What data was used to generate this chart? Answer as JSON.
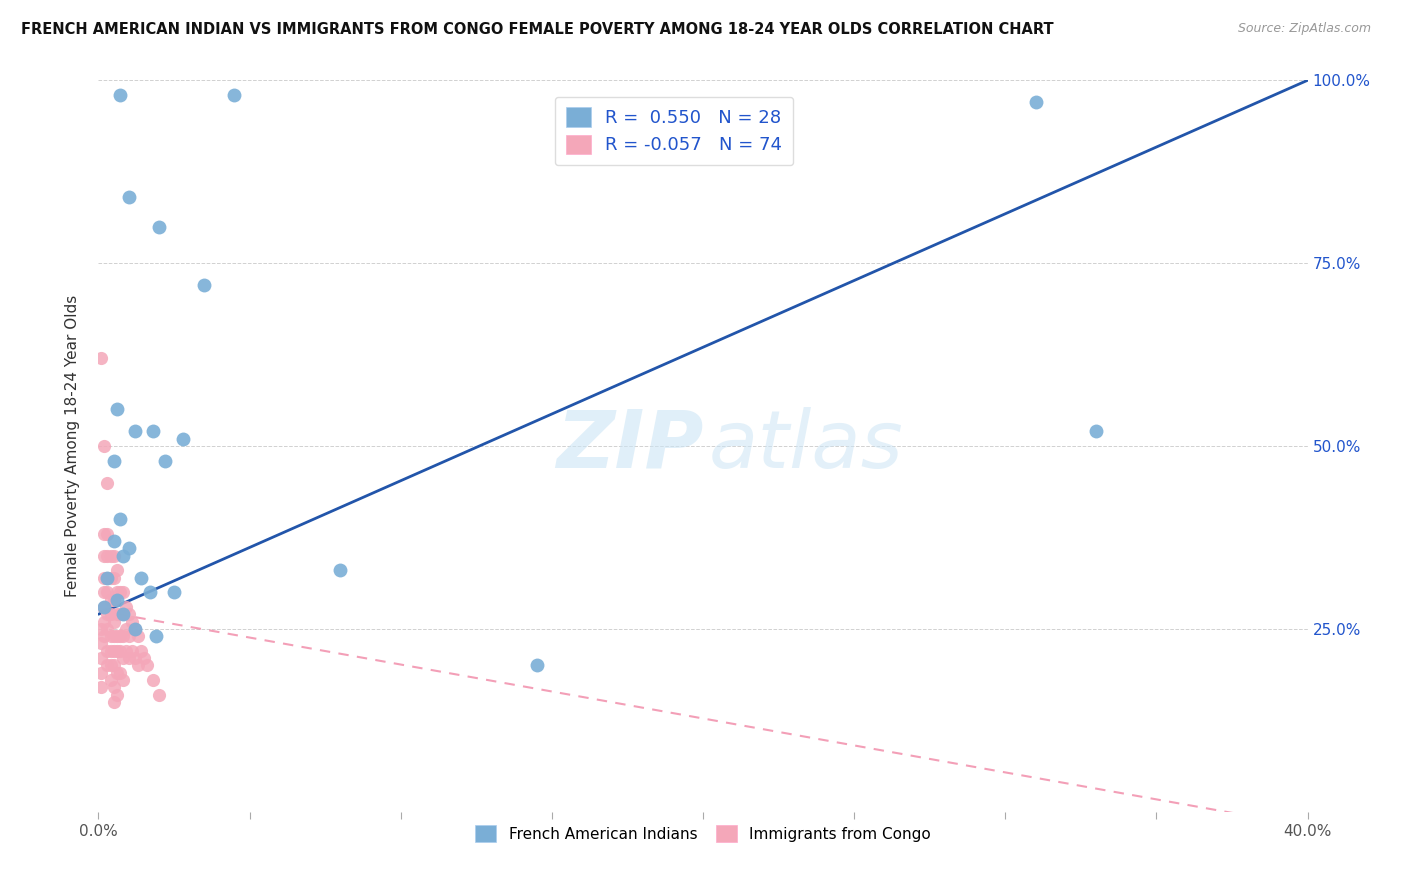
{
  "title": "FRENCH AMERICAN INDIAN VS IMMIGRANTS FROM CONGO FEMALE POVERTY AMONG 18-24 YEAR OLDS CORRELATION CHART",
  "source": "Source: ZipAtlas.com",
  "ylabel": "Female Poverty Among 18-24 Year Olds",
  "xlim": [
    0.0,
    0.4
  ],
  "ylim": [
    0.0,
    1.0
  ],
  "xticks": [
    0.0,
    0.05,
    0.1,
    0.15,
    0.2,
    0.25,
    0.3,
    0.35,
    0.4
  ],
  "yticks": [
    0.0,
    0.25,
    0.5,
    0.75,
    1.0
  ],
  "blue_R": "0.550",
  "blue_N": "28",
  "pink_R": "-0.057",
  "pink_N": "74",
  "legend_label_blue": "French American Indians",
  "legend_label_pink": "Immigrants from Congo",
  "blue_color": "#7aaed6",
  "pink_color": "#f4a7b9",
  "blue_trend_color": "#2255aa",
  "pink_trend_color": "#ee7799",
  "blue_trend_x0": 0.0,
  "blue_trend_y0": 0.27,
  "blue_trend_x1": 0.4,
  "blue_trend_y1": 1.0,
  "pink_trend_x0": 0.0,
  "pink_trend_y0": 0.275,
  "pink_trend_x1": 0.4,
  "pink_trend_y1": -0.02,
  "blue_scatter_x": [
    0.01,
    0.02,
    0.045,
    0.035,
    0.007,
    0.006,
    0.012,
    0.018,
    0.022,
    0.028,
    0.005,
    0.008,
    0.003,
    0.006,
    0.002,
    0.008,
    0.012,
    0.019,
    0.025,
    0.005,
    0.007,
    0.01,
    0.014,
    0.017,
    0.08,
    0.145,
    0.33,
    0.31
  ],
  "blue_scatter_y": [
    0.84,
    0.8,
    0.98,
    0.72,
    0.98,
    0.55,
    0.52,
    0.52,
    0.48,
    0.51,
    0.37,
    0.35,
    0.32,
    0.29,
    0.28,
    0.27,
    0.25,
    0.24,
    0.3,
    0.48,
    0.4,
    0.36,
    0.32,
    0.3,
    0.33,
    0.2,
    0.52,
    0.97
  ],
  "pink_scatter_x": [
    0.001,
    0.001,
    0.001,
    0.001,
    0.001,
    0.002,
    0.002,
    0.002,
    0.002,
    0.002,
    0.002,
    0.002,
    0.003,
    0.003,
    0.003,
    0.003,
    0.003,
    0.003,
    0.003,
    0.003,
    0.004,
    0.004,
    0.004,
    0.004,
    0.004,
    0.004,
    0.004,
    0.004,
    0.005,
    0.005,
    0.005,
    0.005,
    0.005,
    0.005,
    0.005,
    0.005,
    0.005,
    0.006,
    0.006,
    0.006,
    0.006,
    0.006,
    0.006,
    0.006,
    0.007,
    0.007,
    0.007,
    0.007,
    0.007,
    0.008,
    0.008,
    0.008,
    0.008,
    0.008,
    0.009,
    0.009,
    0.009,
    0.01,
    0.01,
    0.01,
    0.011,
    0.011,
    0.012,
    0.012,
    0.013,
    0.013,
    0.014,
    0.015,
    0.016,
    0.018,
    0.02,
    0.001,
    0.002,
    0.003
  ],
  "pink_scatter_y": [
    0.25,
    0.23,
    0.21,
    0.19,
    0.17,
    0.38,
    0.35,
    0.32,
    0.3,
    0.28,
    0.26,
    0.24,
    0.38,
    0.35,
    0.32,
    0.3,
    0.27,
    0.25,
    0.22,
    0.2,
    0.35,
    0.32,
    0.29,
    0.27,
    0.24,
    0.22,
    0.2,
    0.18,
    0.35,
    0.32,
    0.29,
    0.26,
    0.24,
    0.22,
    0.2,
    0.17,
    0.15,
    0.33,
    0.3,
    0.27,
    0.24,
    0.22,
    0.19,
    0.16,
    0.3,
    0.27,
    0.24,
    0.22,
    0.19,
    0.3,
    0.27,
    0.24,
    0.21,
    0.18,
    0.28,
    0.25,
    0.22,
    0.27,
    0.24,
    0.21,
    0.26,
    0.22,
    0.25,
    0.21,
    0.24,
    0.2,
    0.22,
    0.21,
    0.2,
    0.18,
    0.16,
    0.62,
    0.5,
    0.45
  ]
}
